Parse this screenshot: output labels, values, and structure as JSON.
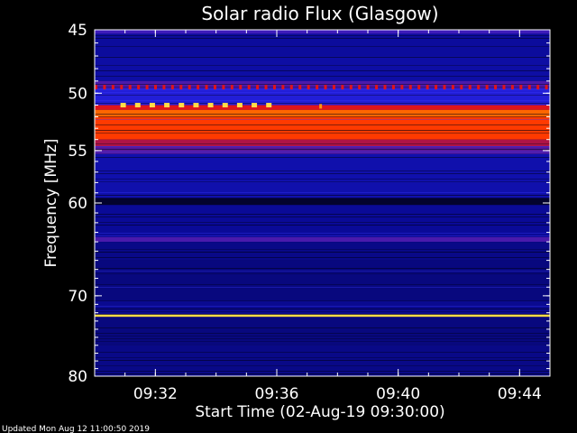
{
  "chart_data": {
    "type": "heatmap",
    "title": "Solar radio Flux (Glasgow)",
    "xlabel": "Start Time (02-Aug-19 09:30:00)",
    "ylabel": "Frequency [MHz]",
    "xlim_minutes": [
      0.0,
      15.0
    ],
    "ylim": [
      45,
      80
    ],
    "y_scale": "log",
    "y_reversed": true,
    "y_ticks": [
      {
        "value": 45,
        "label": "45"
      },
      {
        "value": 50,
        "label": "50"
      },
      {
        "value": 55,
        "label": "55"
      },
      {
        "value": 60,
        "label": "60"
      },
      {
        "value": 70,
        "label": "70"
      },
      {
        "value": 80,
        "label": "80"
      }
    ],
    "x_ticks": [
      {
        "value": 2,
        "label": "09:32"
      },
      {
        "value": 6,
        "label": "09:36"
      },
      {
        "value": 10,
        "label": "09:40"
      },
      {
        "value": 14,
        "label": "09:44"
      }
    ],
    "colormap": [
      "#000000",
      "#0a0a96",
      "#1e1edc",
      "#8c1464",
      "#ff1400",
      "#ff8c00",
      "#ffff64"
    ],
    "frequency_bands": [
      {
        "range": [
          45.0,
          45.3
        ],
        "intensity": 0.38
      },
      {
        "range": [
          45.3,
          47.0
        ],
        "intensity": 0.18
      },
      {
        "range": [
          47.0,
          49.0
        ],
        "intensity": 0.2
      },
      {
        "range": [
          49.0,
          49.6
        ],
        "intensity": 0.4
      },
      {
        "range": [
          49.6,
          51.0
        ],
        "intensity": 0.34
      },
      {
        "range": [
          51.0,
          51.4
        ],
        "intensity": 0.62
      },
      {
        "range": [
          51.4,
          52.0
        ],
        "intensity": 0.78
      },
      {
        "range": [
          52.0,
          54.0
        ],
        "intensity": 0.72
      },
      {
        "range": [
          54.0,
          54.6
        ],
        "intensity": 0.55
      },
      {
        "range": [
          54.6,
          55.3
        ],
        "intensity": 0.42
      },
      {
        "range": [
          55.3,
          59.5
        ],
        "intensity": 0.22
      },
      {
        "range": [
          59.5,
          60.2
        ],
        "intensity": 0.05
      },
      {
        "range": [
          60.2,
          63.5
        ],
        "intensity": 0.17
      },
      {
        "range": [
          63.5,
          64.0
        ],
        "intensity": 0.4
      },
      {
        "range": [
          64.0,
          66.0
        ],
        "intensity": 0.15
      },
      {
        "range": [
          66.0,
          70.5
        ],
        "intensity": 0.14
      },
      {
        "range": [
          70.5,
          72.2
        ],
        "intensity": 0.16
      },
      {
        "range": [
          72.2,
          72.5
        ],
        "intensity": 0.95
      },
      {
        "range": [
          72.5,
          76.0
        ],
        "intensity": 0.14
      },
      {
        "range": [
          76.0,
          80.0
        ],
        "intensity": 0.15
      }
    ],
    "features": [
      {
        "kind": "periodic_pulses",
        "frequency": 49.5,
        "from": 0.0,
        "to": 15.0,
        "step": 0.28,
        "intensity": 0.62
      },
      {
        "kind": "periodic_pulses",
        "frequency": 51.0,
        "from": 0.85,
        "to": 5.9,
        "step": 0.48,
        "intensity": 0.95
      },
      {
        "kind": "periodic_pulses",
        "frequency": 51.1,
        "from": 7.4,
        "to": 7.6,
        "step": 1.0,
        "intensity": 0.85
      }
    ]
  },
  "footer": {
    "updated": "Updated Mon Aug 12 11:00:50 2019"
  }
}
